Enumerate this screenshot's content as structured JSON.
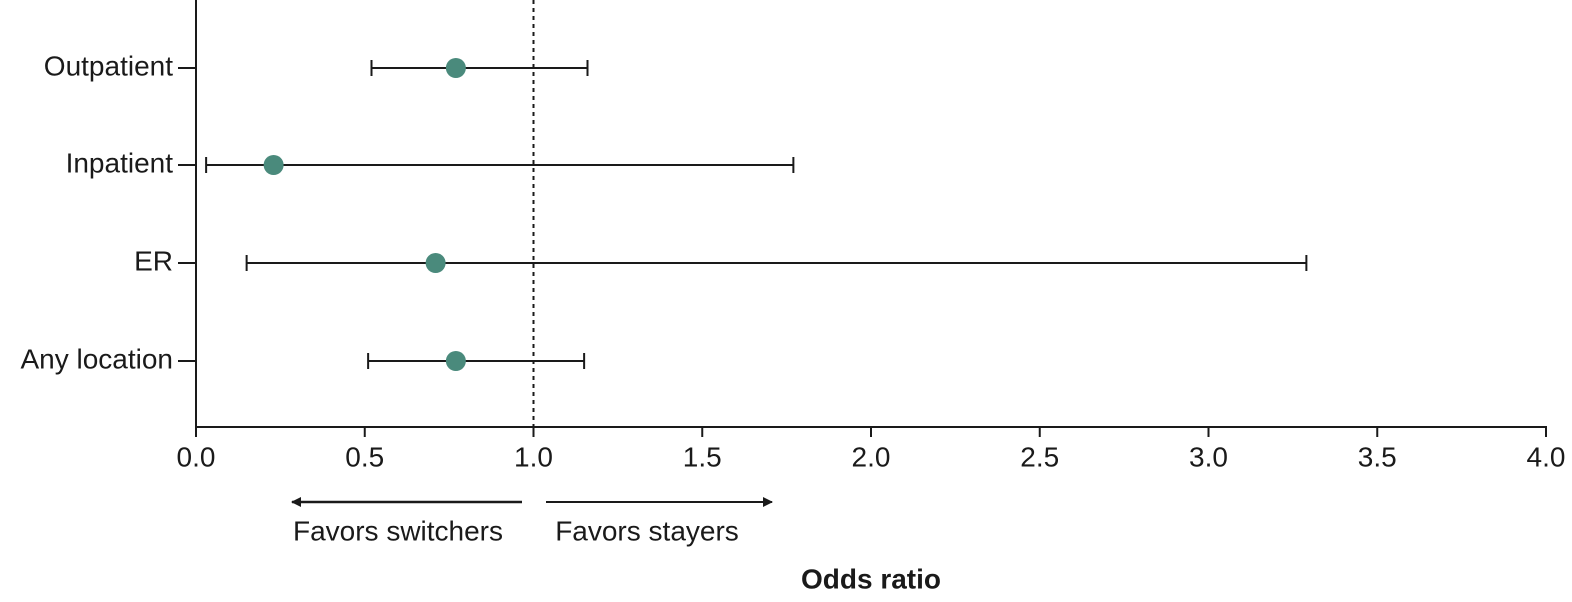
{
  "chart_data": {
    "type": "forest",
    "categories": [
      "Outpatient",
      "Inpatient",
      "ER",
      "Any location"
    ],
    "values": [
      0.77,
      0.23,
      0.71,
      0.77
    ],
    "lower": [
      0.52,
      0.03,
      0.15,
      0.51
    ],
    "upper": [
      1.16,
      1.77,
      3.29,
      1.15
    ],
    "color": "#4a8a7c",
    "reference_line": 1,
    "xlim": [
      0,
      4
    ],
    "xticks": [
      {
        "value": 0,
        "label": "0.0"
      },
      0.5,
      {
        "value": 1,
        "label": "1.0"
      },
      1.5,
      {
        "value": 2,
        "label": "2.0"
      },
      2.5,
      {
        "value": 3,
        "label": "3.0"
      },
      3.5,
      {
        "value": 4,
        "label": "4.0"
      }
    ],
    "annotations": [
      "Favors switchers",
      "Favors stayers"
    ],
    "xlabel": "Odds ratio"
  }
}
